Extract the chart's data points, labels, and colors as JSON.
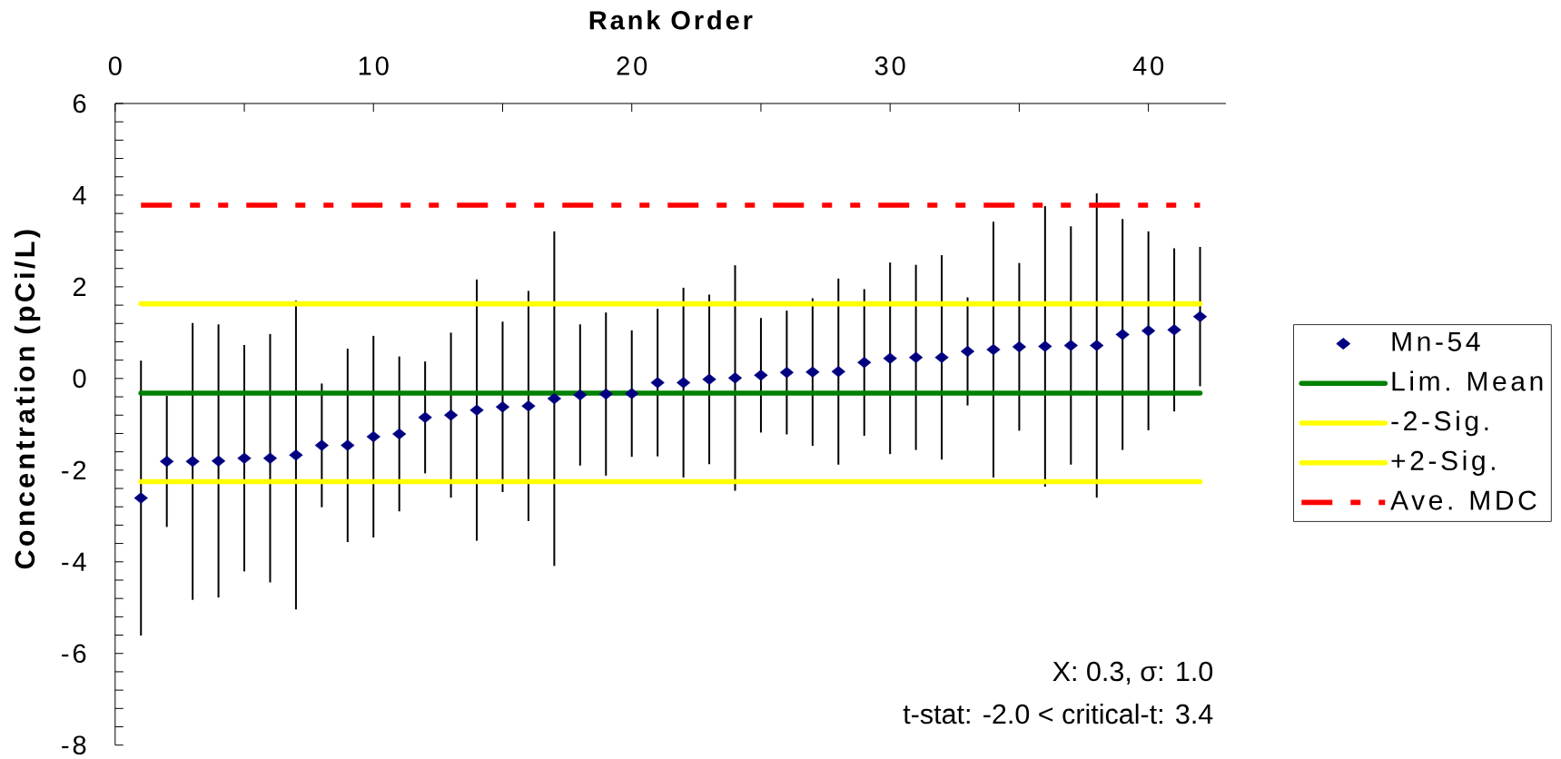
{
  "chart_data": {
    "type": "scatter",
    "xlabel": "Rank Order",
    "ylabel": "Concentration (pCi/L)",
    "xlim": [
      0,
      43
    ],
    "xticks": [
      0,
      {
        "value": 5,
        "label": null
      },
      10,
      {
        "value": 15,
        "label": null
      },
      20,
      {
        "value": 25,
        "label": null
      },
      30,
      {
        "value": 35,
        "label": null
      },
      40
    ],
    "ylim": [
      -8,
      6
    ],
    "yticks": [
      -8,
      {
        "value": -7.6,
        "label": null
      },
      {
        "value": -7.2,
        "label": null
      },
      {
        "value": -6.8,
        "label": null
      },
      {
        "value": -6.4,
        "label": null
      },
      -6,
      {
        "value": -5.6,
        "label": null
      },
      {
        "value": -5.2,
        "label": null
      },
      {
        "value": -4.8,
        "label": null
      },
      {
        "value": -4.4,
        "label": null
      },
      -4,
      {
        "value": -3.6,
        "label": null
      },
      {
        "value": -3.2,
        "label": null
      },
      {
        "value": -2.8,
        "label": null
      },
      {
        "value": -2.4,
        "label": null
      },
      -2,
      {
        "value": -1.6,
        "label": null
      },
      {
        "value": -1.2,
        "label": null
      },
      {
        "value": -0.8,
        "label": null
      },
      {
        "value": -0.4,
        "label": null
      },
      0,
      {
        "value": 0.4,
        "label": null
      },
      {
        "value": 0.8,
        "label": null
      },
      {
        "value": 1.2,
        "label": null
      },
      {
        "value": 1.6,
        "label": null
      },
      2,
      {
        "value": 2.4,
        "label": null
      },
      {
        "value": 2.8,
        "label": null
      },
      {
        "value": 3.2,
        "label": null
      },
      {
        "value": 3.6,
        "label": null
      },
      4,
      {
        "value": 4.4,
        "label": null
      },
      {
        "value": 4.8,
        "label": null
      },
      {
        "value": 5.2,
        "label": null
      },
      {
        "value": 5.6,
        "label": null
      },
      6
    ],
    "legend": "right",
    "series": [
      {
        "name": "Mn-54",
        "type": "scatter",
        "color": "#000080",
        "marker": "diamond",
        "x": [
          1,
          2,
          3,
          4,
          5,
          6,
          7,
          8,
          9,
          10,
          11,
          12,
          13,
          14,
          15,
          16,
          17,
          18,
          19,
          20,
          21,
          22,
          23,
          24,
          25,
          26,
          27,
          28,
          29,
          30,
          31,
          32,
          33,
          34,
          35,
          36,
          37,
          38,
          39,
          40,
          41,
          42
        ],
        "values": [
          -2.61,
          -1.81,
          -1.81,
          -1.8,
          -1.74,
          -1.74,
          -1.67,
          -1.46,
          -1.46,
          -1.27,
          -1.21,
          -0.85,
          -0.8,
          -0.69,
          -0.62,
          -0.6,
          -0.44,
          -0.36,
          -0.34,
          -0.33,
          -0.09,
          -0.09,
          -0.02,
          0.01,
          0.07,
          0.13,
          0.14,
          0.15,
          0.35,
          0.44,
          0.46,
          0.46,
          0.59,
          0.63,
          0.69,
          0.7,
          0.72,
          0.72,
          0.96,
          1.04,
          1.06,
          1.35
        ],
        "errors": [
          3.0,
          1.43,
          3.02,
          2.98,
          2.47,
          2.71,
          3.37,
          1.35,
          2.11,
          2.2,
          1.69,
          1.22,
          1.8,
          2.85,
          1.86,
          2.51,
          3.65,
          1.54,
          1.78,
          1.38,
          1.61,
          2.07,
          1.85,
          2.46,
          1.25,
          1.35,
          1.61,
          2.03,
          1.6,
          2.09,
          2.02,
          2.23,
          1.18,
          2.79,
          1.83,
          3.06,
          2.6,
          3.32,
          2.52,
          2.17,
          1.78,
          1.52
        ]
      },
      {
        "name": "Lim. Mean",
        "type": "line",
        "color": "#008000",
        "line_style": "solid",
        "x": [
          1,
          42
        ],
        "values": [
          -0.32,
          -0.32
        ]
      },
      {
        "name": "-2-Sig.",
        "type": "line",
        "color": "#ffff00",
        "line_style": "solid",
        "x": [
          1,
          42
        ],
        "values": [
          -2.25,
          -2.25
        ]
      },
      {
        "name": "+2-Sig.",
        "type": "line",
        "color": "#ffff00",
        "line_style": "solid",
        "x": [
          1,
          42
        ],
        "values": [
          1.63,
          1.63
        ]
      },
      {
        "name": "Ave. MDC",
        "type": "line",
        "color": "#ff0000",
        "line_style": "dashed",
        "x": [
          1,
          42
        ],
        "values": [
          3.78,
          3.78
        ]
      }
    ],
    "annotations": [
      "X: 0.3, σ: 1.0",
      "t-stat: -2.0 < critical-t: 3.4"
    ]
  }
}
